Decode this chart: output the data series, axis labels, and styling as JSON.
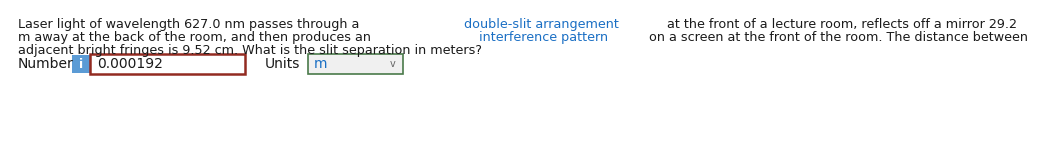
{
  "bg_color": "#ffffff",
  "text_color": "#1a1a1a",
  "blue_text_color": "#1a6fc4",
  "line1_segments": [
    [
      "Laser light of wavelength 627.0 nm passes through a ",
      "#1a1a1a"
    ],
    [
      "double-slit arrangement",
      "#1a6fc4"
    ],
    [
      " at the front of a lecture room, reflects off a mirror 29.2",
      "#1a1a1a"
    ]
  ],
  "line2_segments": [
    [
      "m away at the back of the room, and then produces an ",
      "#1a1a1a"
    ],
    [
      "interference pattern",
      "#1a6fc4"
    ],
    [
      " on a screen at the front of the room. The distance between",
      "#1a1a1a"
    ]
  ],
  "line3_segments": [
    [
      "adjacent bright fringes is 9.52 cm. What is the slit separation in meters?",
      "#1a1a1a"
    ]
  ],
  "label_number": "Number",
  "info_btn_color": "#5b9bd5",
  "info_btn_text": "i",
  "input_value": "0.000192",
  "input_border_color": "#922b21",
  "label_units": "Units",
  "units_value": "m",
  "units_box_border": "#4a7a4a",
  "units_box_bg": "#f0f0f0",
  "font_size_para": 9.2,
  "font_size_bottom": 10.0
}
